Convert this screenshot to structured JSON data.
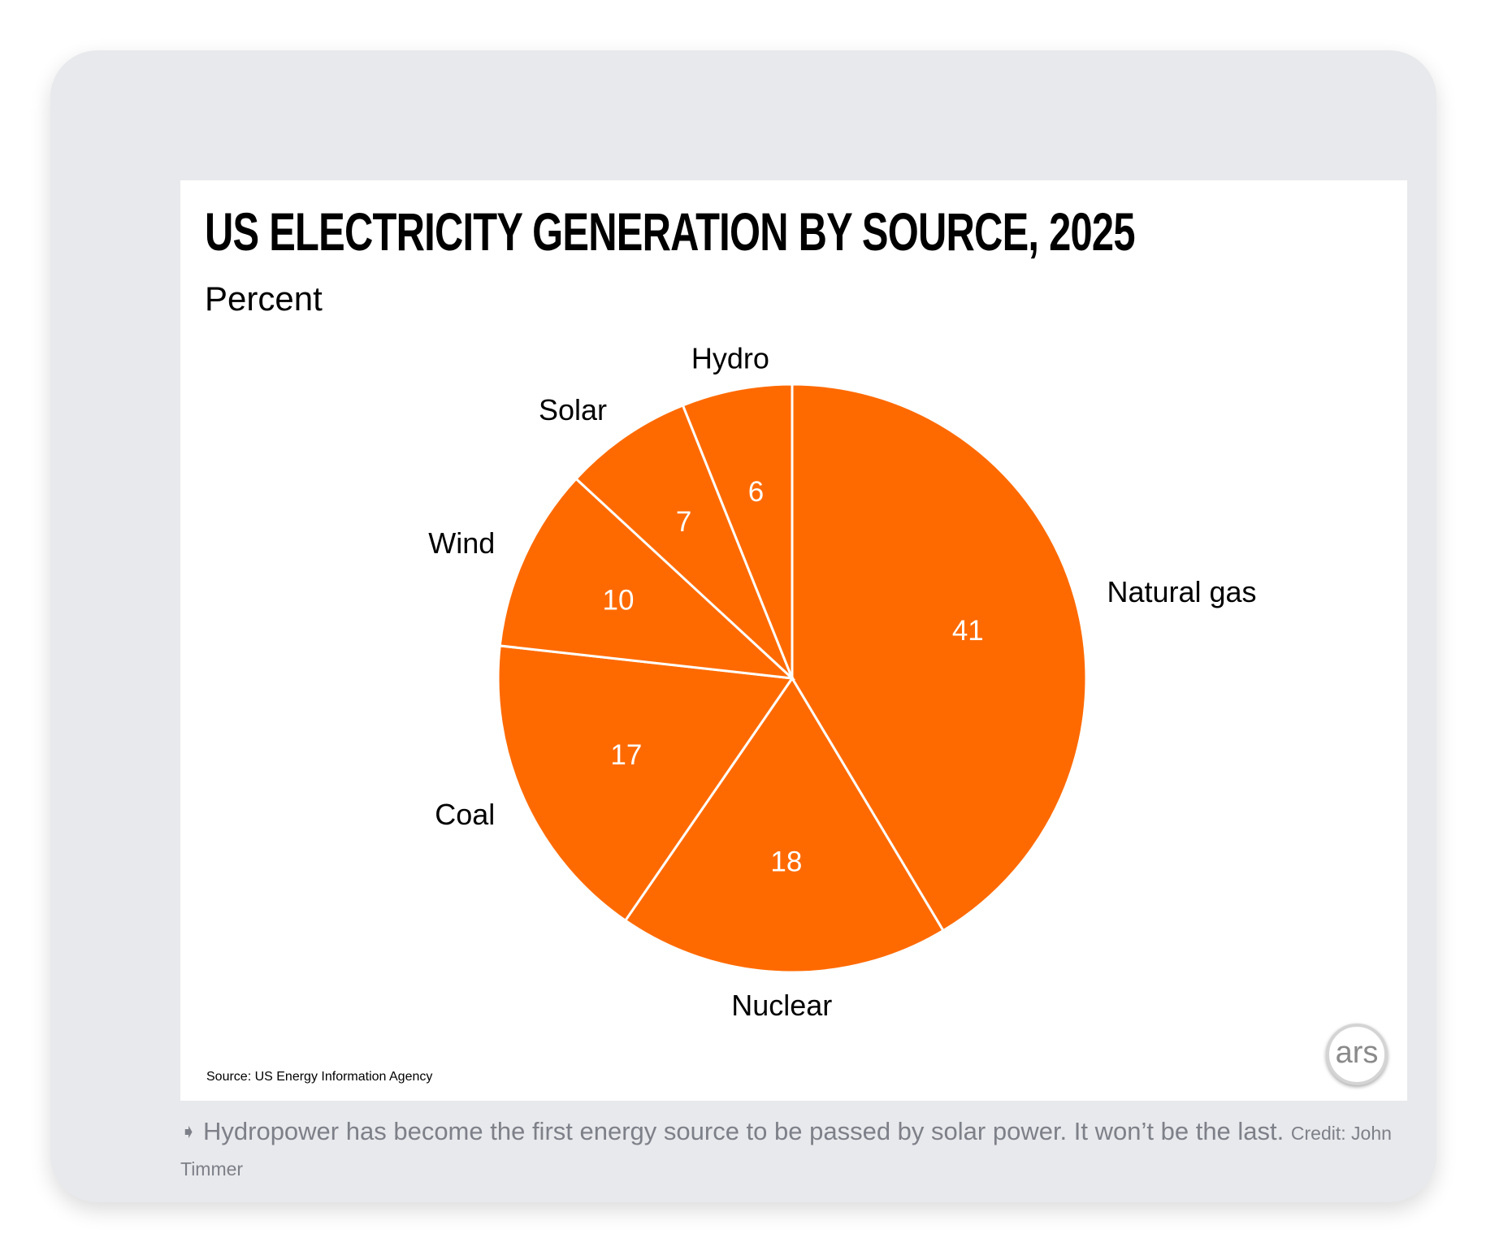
{
  "chart_data": {
    "type": "pie",
    "title": "US ELECTRICITY GENERATION BY SOURCE, 2025",
    "subtitle": "Percent",
    "slices": [
      {
        "label": "Natural gas",
        "value": 41
      },
      {
        "label": "Nuclear",
        "value": 18
      },
      {
        "label": "Coal",
        "value": 17
      },
      {
        "label": "Wind",
        "value": 10
      },
      {
        "label": "Solar",
        "value": 7
      },
      {
        "label": "Hydro",
        "value": 6
      }
    ],
    "start_angle": "12 o'clock",
    "direction": "clockwise",
    "color": "#ff6a00",
    "source": "Source:  US Energy Information Agency"
  },
  "logo": {
    "text": "ars"
  },
  "caption": {
    "icon": "arrow-icon",
    "text": "Hydropower has become the first energy source to be passed by solar power. It won’t be the last.",
    "credit": "Credit: John Timmer"
  }
}
